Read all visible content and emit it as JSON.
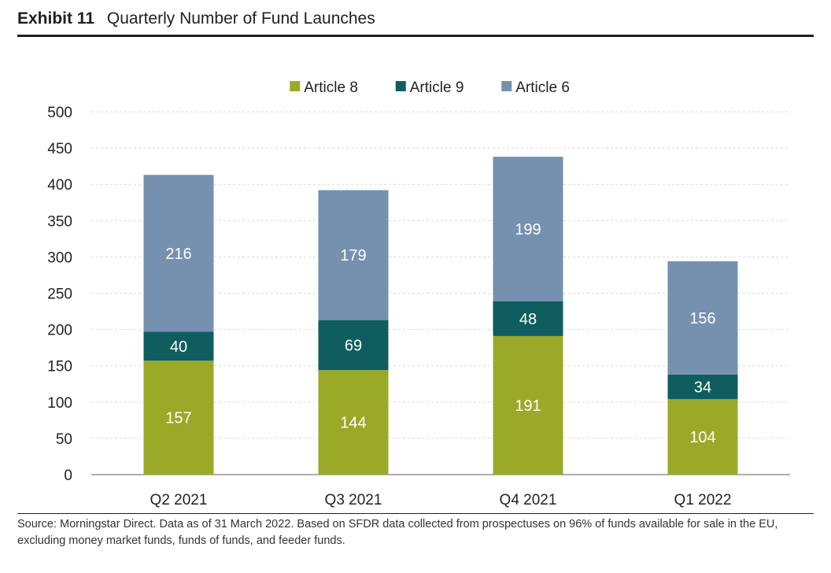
{
  "header": {
    "exhibit": "Exhibit 11",
    "title": "Quarterly Number of Fund Launches"
  },
  "footer": {
    "source": "Source: Morningstar Direct. Data as of 31 March 2022. Based on SFDR data collected from prospectuses on 96% of funds available for sale in the EU, excluding money market funds, funds of funds, and feeder funds."
  },
  "chart_data": {
    "type": "bar",
    "stacked": true,
    "title": "Quarterly Number of Fund Launches",
    "xlabel": "",
    "ylabel": "",
    "categories": [
      "Q2 2021",
      "Q3 2021",
      "Q4 2021",
      "Q1 2022"
    ],
    "series": [
      {
        "name": "Article 8",
        "color": "#9aaa28",
        "values": [
          157,
          144,
          191,
          104
        ]
      },
      {
        "name": "Article 9",
        "color": "#0f5d5e",
        "values": [
          40,
          69,
          48,
          34
        ]
      },
      {
        "name": "Article 6",
        "color": "#7690b0",
        "values": [
          216,
          179,
          199,
          156
        ]
      }
    ],
    "ylim": [
      0,
      500
    ],
    "yticks": [
      0,
      50,
      100,
      150,
      200,
      250,
      300,
      350,
      400,
      450,
      500
    ],
    "grid": true,
    "legend_position": "top-center",
    "data_labels": true
  }
}
